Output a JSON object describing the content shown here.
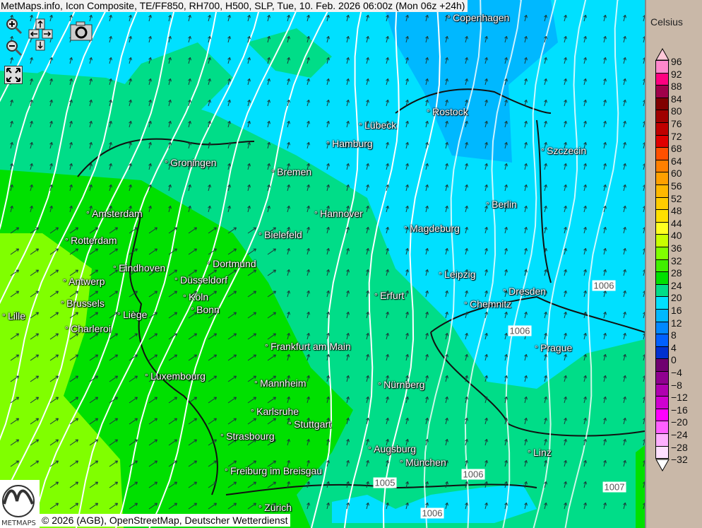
{
  "title": "MetMaps.info, Icon Composite, TE/FF850, RH700, H500, SLP, Tue, 10. Feb. 2026 06:00z (Mon 06z +24h)",
  "controls": {
    "zoom_in": "zoom-in-icon",
    "zoom_out": "zoom-out-icon",
    "pan": "pan-arrows-icon",
    "snapshot": "camera-icon",
    "fullscreen": "fullscreen-icon"
  },
  "cities": [
    "Copenhagen",
    "Rostock",
    "Lübeck",
    "Hamburg",
    "Szczecin",
    "Groningen",
    "Bremen",
    "Amsterdam",
    "Hannover",
    "Berlin",
    "Bielefeld",
    "Magdeburg",
    "Rotterdam",
    "Dortmund",
    "Eindhoven",
    "Leipzig",
    "Antwerp",
    "Düsseldorf",
    "Dresden",
    "Erfurt",
    "Köln",
    "Brussels",
    "Bonn",
    "Chemnitz",
    "Liège",
    "Lille",
    "Charleroi",
    "Frankfurt am Main",
    "Prague",
    "Luxembourg",
    "Mannheim",
    "Nürnberg",
    "Karlsruhe",
    "Stuttgart",
    "Strasbourg",
    "Augsburg",
    "Linz",
    "München",
    "Freiburg im Breisgau",
    "Zürich"
  ],
  "isobar_labels": [
    "1006",
    "1006",
    "1005",
    "1006",
    "1006",
    "1007"
  ],
  "copyright": "© 2026 (AGB), OpenStreetMap, Deutscher Wetterdienst",
  "logo_text": "METMAPS",
  "legend": {
    "unit": "Celsius",
    "labels": [
      "96",
      "92",
      "88",
      "84",
      "80",
      "76",
      "72",
      "68",
      "64",
      "60",
      "56",
      "52",
      "48",
      "44",
      "40",
      "36",
      "32",
      "28",
      "24",
      "20",
      "16",
      "12",
      "8",
      "4",
      "0",
      "−4",
      "−8",
      "−12",
      "−16",
      "−20",
      "−24",
      "−28",
      "−32"
    ],
    "colors": [
      "#ff88cc",
      "#ff0080",
      "#a0004a",
      "#800000",
      "#a00000",
      "#c00000",
      "#e00000",
      "#ff5000",
      "#ff8000",
      "#ffa000",
      "#ffb800",
      "#ffcc00",
      "#ffe000",
      "#ffff20",
      "#c8ff00",
      "#80ff00",
      "#40f000",
      "#00e000",
      "#00dd88",
      "#00e0ff",
      "#00b8ff",
      "#0088ff",
      "#0060ff",
      "#0030d0",
      "#700070",
      "#900090",
      "#b000b0",
      "#d000d0",
      "#ff00ff",
      "#ff60ff",
      "#ffb0ff",
      "#ffe0ff"
    ]
  }
}
